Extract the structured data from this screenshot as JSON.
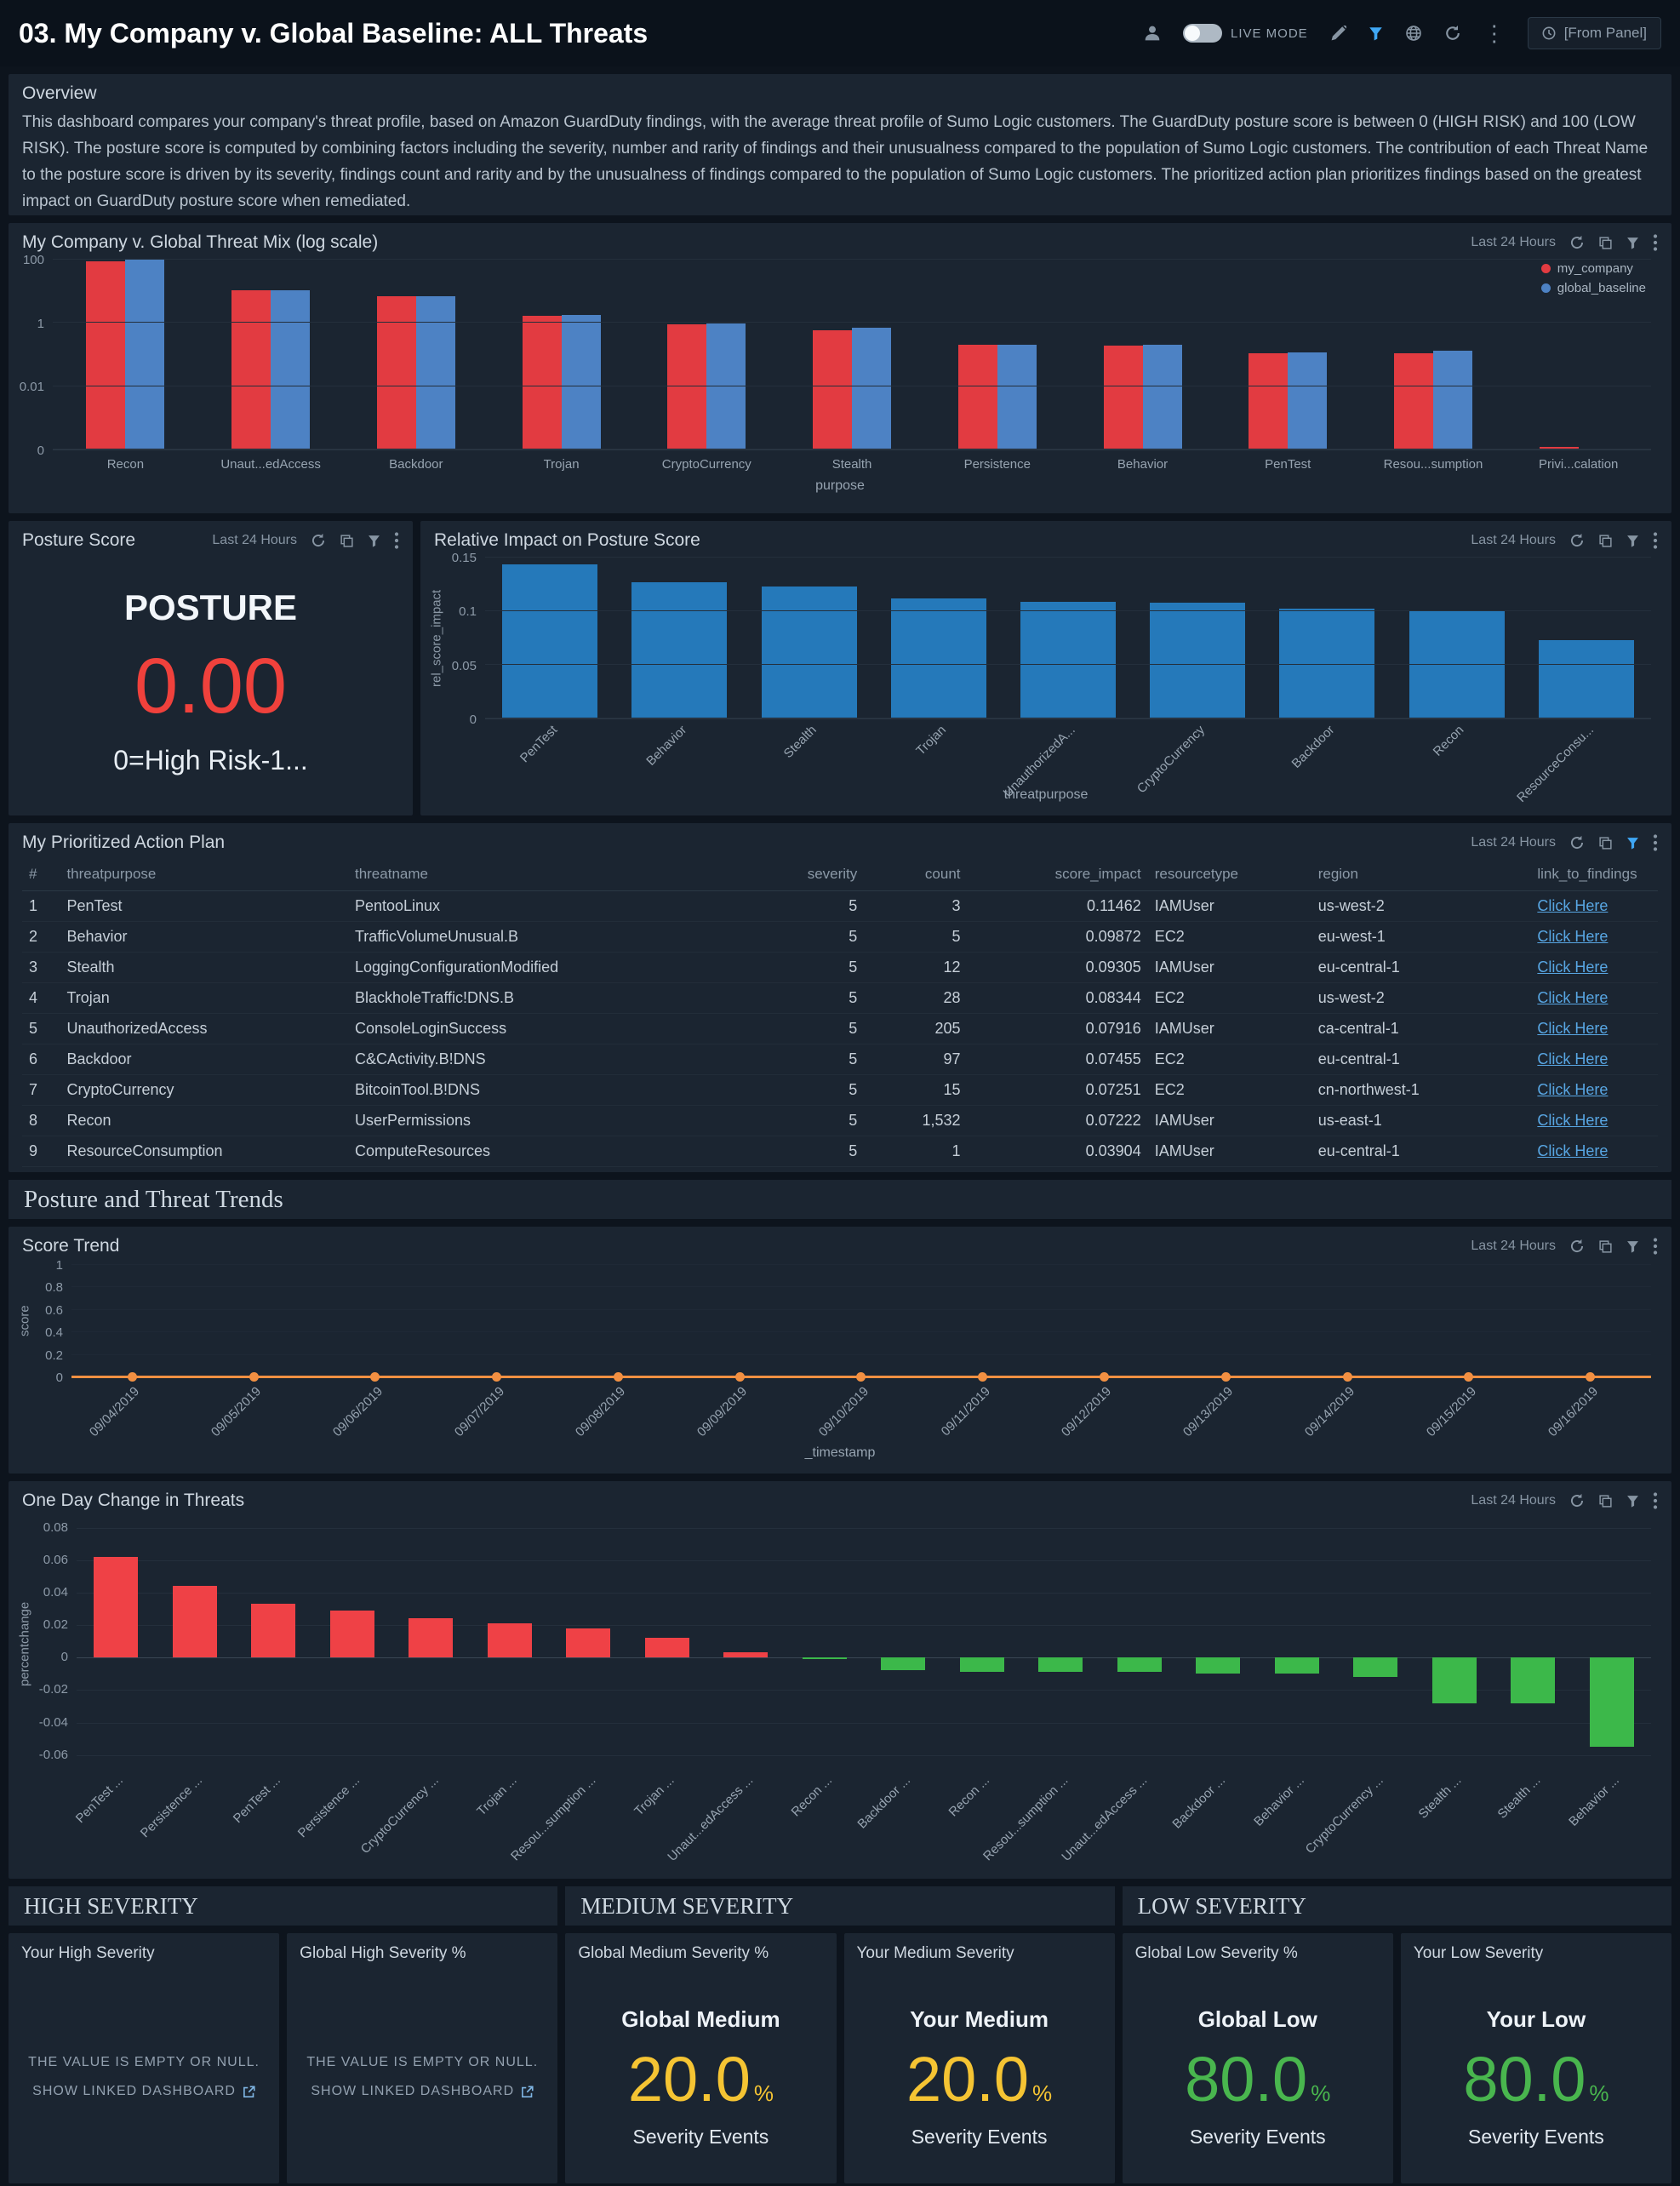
{
  "header": {
    "title": "03. My Company v. Global Baseline: ALL Threats",
    "live_mode_label": "LIVE MODE",
    "from_panel_label": "[From Panel]"
  },
  "panel_controls": {
    "time_range": "Last 24 Hours"
  },
  "overview": {
    "title": "Overview",
    "body": "This dashboard compares your company's threat profile, based on Amazon GuardDuty findings, with the average threat profile of Sumo Logic customers. The GuardDuty posture score is between 0 (HIGH RISK) and 100 (LOW RISK). The posture score is computed by combining factors including the severity, number and rarity of findings and their unusualness compared to the population of Sumo Logic customers. The contribution of each Threat Name to the posture score is driven by its severity, findings count and rarity and by the unusualness of findings compared to the population of Sumo Logic customers. The prioritized action plan prioritizes findings based on the greatest impact on GuardDuty posture score when remediated."
  },
  "posture": {
    "title": "Posture Score",
    "label": "POSTURE",
    "value": "0.00",
    "caption": "0=High Risk-1...",
    "value_color": "#f0413c"
  },
  "action_plan": {
    "title": "My Prioritized Action Plan",
    "columns": [
      "#",
      "threatpurpose",
      "threatname",
      "severity",
      "count",
      "score_impact",
      "resourcetype",
      "region",
      "link_to_findings"
    ],
    "rows": [
      [
        "1",
        "PenTest",
        "PentooLinux",
        "5",
        "3",
        "0.11462",
        "IAMUser",
        "us-west-2",
        "Click Here"
      ],
      [
        "2",
        "Behavior",
        "TrafficVolumeUnusual.B",
        "5",
        "5",
        "0.09872",
        "EC2",
        "eu-west-1",
        "Click Here"
      ],
      [
        "3",
        "Stealth",
        "LoggingConfigurationModified",
        "5",
        "12",
        "0.09305",
        "IAMUser",
        "eu-central-1",
        "Click Here"
      ],
      [
        "4",
        "Trojan",
        "BlackholeTraffic!DNS.B",
        "5",
        "28",
        "0.08344",
        "EC2",
        "us-west-2",
        "Click Here"
      ],
      [
        "5",
        "UnauthorizedAccess",
        "ConsoleLoginSuccess",
        "5",
        "205",
        "0.07916",
        "IAMUser",
        "ca-central-1",
        "Click Here"
      ],
      [
        "6",
        "Backdoor",
        "C&CActivity.B!DNS",
        "5",
        "97",
        "0.07455",
        "EC2",
        "eu-central-1",
        "Click Here"
      ],
      [
        "7",
        "CryptoCurrency",
        "BitcoinTool.B!DNS",
        "5",
        "15",
        "0.07251",
        "EC2",
        "cn-northwest-1",
        "Click Here"
      ],
      [
        "8",
        "Recon",
        "UserPermissions",
        "5",
        "1,532",
        "0.07222",
        "IAMUser",
        "us-east-1",
        "Click Here"
      ],
      [
        "9",
        "ResourceConsumption",
        "ComputeResources",
        "5",
        "1",
        "0.03904",
        "IAMUser",
        "eu-central-1",
        "Click Here"
      ]
    ]
  },
  "trends_header": "Posture and Threat Trends",
  "severity": {
    "high": {
      "header": "HIGH SEVERITY",
      "panels": [
        {
          "title": "Your High Severity",
          "line1": "THE VALUE IS EMPTY OR NULL.",
          "line2": "SHOW LINKED DASHBOARD"
        },
        {
          "title": "Global High Severity %",
          "line1": "THE VALUE IS EMPTY OR NULL.",
          "line2": "SHOW LINKED DASHBOARD"
        }
      ]
    },
    "medium": {
      "header": "MEDIUM SEVERITY",
      "panels": [
        {
          "title": "Global Medium Severity %",
          "label": "Global Medium",
          "value": "20.0",
          "unit": "%",
          "sub": "Severity Events",
          "color": "#f5c433"
        },
        {
          "title": "Your Medium Severity",
          "label": "Your Medium",
          "value": "20.0",
          "unit": "%",
          "sub": "Severity Events",
          "color": "#f5c433"
        }
      ]
    },
    "low": {
      "header": "LOW SEVERITY",
      "panels": [
        {
          "title": "Global Low Severity %",
          "label": "Global Low",
          "value": "80.0",
          "unit": "%",
          "sub": "Severity Events",
          "color": "#49b64e"
        },
        {
          "title": "Your Low Severity",
          "label": "Your Low",
          "value": "80.0",
          "unit": "%",
          "sub": "Severity Events",
          "color": "#49b64e"
        }
      ]
    }
  },
  "chart_data": [
    {
      "id": "threat_mix",
      "type": "bar",
      "scale": "log",
      "title": "My Company v. Global Threat Mix (log scale)",
      "xlabel": "purpose",
      "categories": [
        "Recon",
        "Unaut...edAccess",
        "Backdoor",
        "Trojan",
        "CryptoCurrency",
        "Stealth",
        "Persistence",
        "Behavior",
        "PenTest",
        "Resou...sumption",
        "Privi...calation"
      ],
      "series": [
        {
          "name": "my_company",
          "color": "#e23b41",
          "values": [
            90,
            11,
            7,
            1.7,
            0.9,
            0.6,
            0.2,
            0.19,
            0.11,
            0.11,
            0.00012
          ]
        },
        {
          "name": "global_baseline",
          "color": "#4d82c4",
          "values": [
            100,
            11,
            7,
            1.8,
            0.95,
            0.7,
            0.21,
            0.21,
            0.12,
            0.13,
            0
          ]
        }
      ],
      "yticks": [
        100,
        1,
        0.01,
        0
      ],
      "legend_position": "top-right"
    },
    {
      "id": "rel_impact",
      "type": "bar",
      "title": "Relative Impact on Posture Score",
      "xlabel": "threatpurpose",
      "ylabel": "rel_score_impact",
      "categories": [
        "PenTest",
        "Behavior",
        "Stealth",
        "Trojan",
        "UnauthorizedA...",
        "CryptoCurrency",
        "Backdoor",
        "Recon",
        "ResourceConsu..."
      ],
      "values": [
        0.144,
        0.127,
        0.123,
        0.112,
        0.109,
        0.108,
        0.102,
        0.1,
        0.073
      ],
      "color": "#2579ba",
      "ylim": [
        0,
        0.15
      ],
      "yticks": [
        0,
        0.05,
        0.1,
        0.15
      ]
    },
    {
      "id": "score_trend",
      "type": "line",
      "title": "Score Trend",
      "xlabel": "_timestamp",
      "ylabel": "score",
      "x": [
        "09/04/2019",
        "09/05/2019",
        "09/06/2019",
        "09/07/2019",
        "09/08/2019",
        "09/09/2019",
        "09/10/2019",
        "09/11/2019",
        "09/12/2019",
        "09/13/2019",
        "09/14/2019",
        "09/15/2019",
        "09/16/2019"
      ],
      "values": [
        0,
        0,
        0,
        0,
        0,
        0,
        0,
        0,
        0,
        0,
        0,
        0,
        0
      ],
      "color": "#f29042",
      "ylim": [
        0,
        1
      ],
      "yticks": [
        1,
        0.8,
        0.6,
        0.4,
        0.2,
        0
      ]
    },
    {
      "id": "one_day_change",
      "type": "bar",
      "title": "One Day Change in Threats",
      "ylabel": "percentchange",
      "categories": [
        "PenTest ...",
        "Persistence ...",
        "PenTest ...",
        "Persistence ...",
        "CryptoCurrency ...",
        "Trojan ...",
        "Resou...sumption ...",
        "Trojan ...",
        "Unaut...edAccess ...",
        "Recon ...",
        "Backdoor ...",
        "Recon ...",
        "Resou...sumption ...",
        "Unaut...edAccess ...",
        "Backdoor ...",
        "Behavior ...",
        "CryptoCurrency ...",
        "Stealth ...",
        "Stealth ...",
        "Behavior ..."
      ],
      "values": [
        0.062,
        0.044,
        0.033,
        0.029,
        0.024,
        0.021,
        0.018,
        0.012,
        0.003,
        -0.001,
        -0.008,
        -0.009,
        -0.009,
        -0.009,
        -0.01,
        -0.01,
        -0.012,
        -0.028,
        -0.028,
        -0.055
      ],
      "positive_color": "#ef4146",
      "negative_color": "#3cb84a",
      "yticks": [
        0.08,
        0.06,
        0.04,
        0.02,
        0,
        -0.02,
        -0.04,
        -0.06
      ]
    }
  ]
}
